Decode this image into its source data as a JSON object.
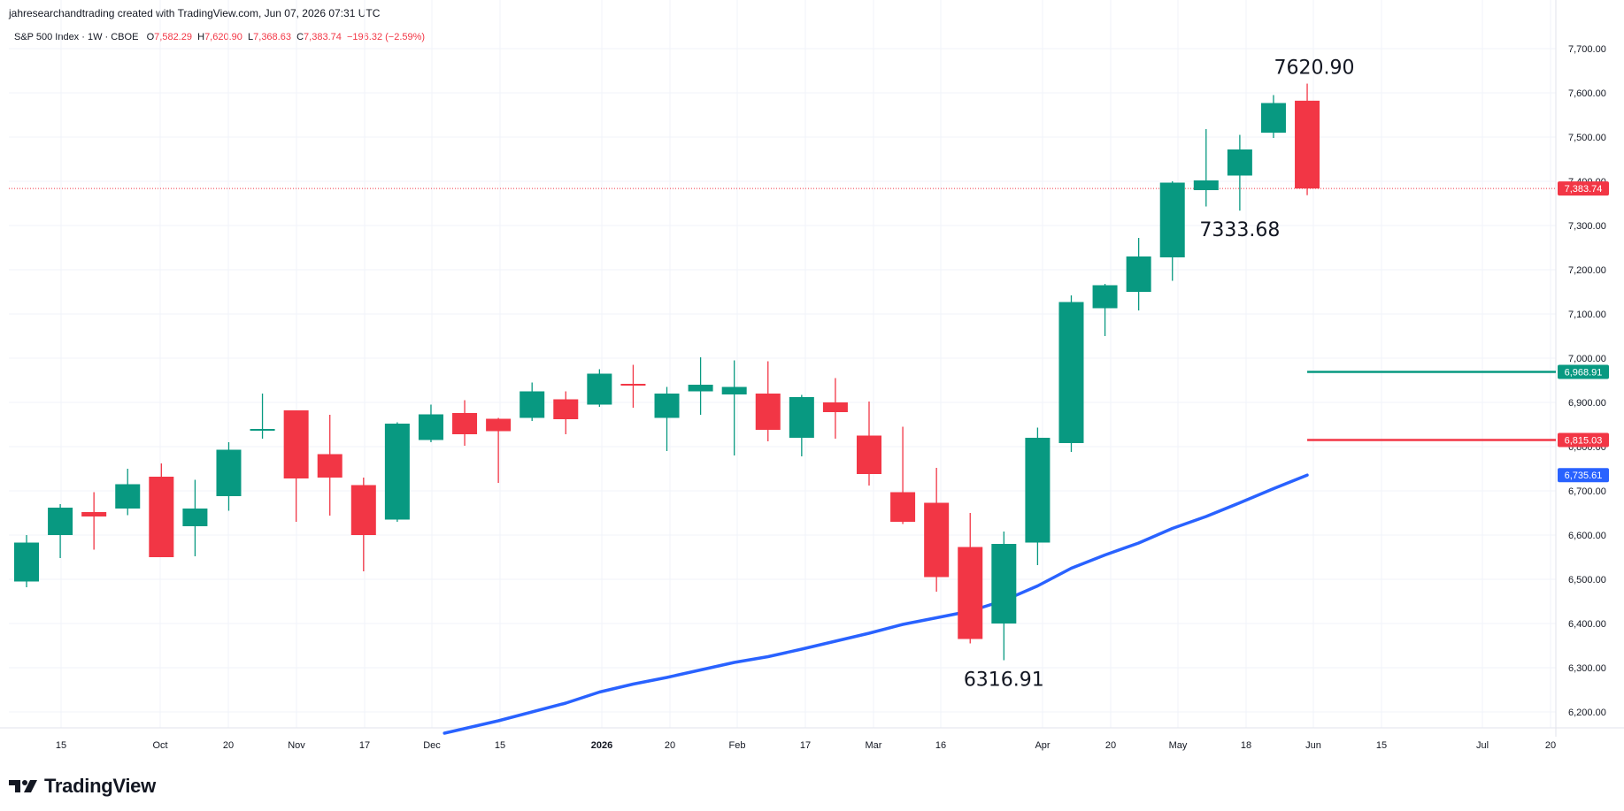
{
  "header": {
    "credit": "jahresearchandtrading created with TradingView.com, Jun 07, 2026 07:31 UTC"
  },
  "legend": {
    "symbol": "S&P 500 Index · 1W · CBOE",
    "o_label": "O",
    "o_value": "7,582.29",
    "h_label": "H",
    "h_value": "7,620.90",
    "l_label": "L",
    "l_value": "7,368.63",
    "c_label": "C",
    "c_value": "7,383.74",
    "change": "−196.32 (−2.59%)"
  },
  "footer": {
    "brand": "TradingView",
    "logo_icon": "tradingview-logo-icon"
  },
  "colors": {
    "up": "#089981",
    "down": "#f23645",
    "ma": "#2962ff",
    "grid": "#f0f3fa"
  },
  "chart_data": {
    "type": "candlestick",
    "ylim": [
      6150,
      7750
    ],
    "y_ticks": [
      "6,200.00",
      "6,300.00",
      "6,400.00",
      "6,500.00",
      "6,600.00",
      "6,700.00",
      "6,800.00",
      "6,900.00",
      "7,000.00",
      "7,100.00",
      "7,200.00",
      "7,300.00",
      "7,400.00",
      "7,500.00",
      "7,600.00",
      "7,700.00"
    ],
    "x_ticks": [
      "15",
      "Oct",
      "20",
      "Nov",
      "17",
      "Dec",
      "15",
      "2026",
      "20",
      "Feb",
      "17",
      "Mar",
      "16",
      "Apr",
      "20",
      "May",
      "18",
      "Jun",
      "15",
      "Jul",
      "20"
    ],
    "candles": [
      {
        "o": 6495,
        "h": 6600,
        "l": 6482,
        "c": 6583
      },
      {
        "o": 6600,
        "h": 6670,
        "l": 6548,
        "c": 6662
      },
      {
        "o": 6652,
        "h": 6697,
        "l": 6567,
        "c": 6642
      },
      {
        "o": 6660,
        "h": 6750,
        "l": 6645,
        "c": 6715
      },
      {
        "o": 6732,
        "h": 6762,
        "l": 6550,
        "c": 6550
      },
      {
        "o": 6620,
        "h": 6725,
        "l": 6552,
        "c": 6660
      },
      {
        "o": 6688,
        "h": 6810,
        "l": 6655,
        "c": 6793
      },
      {
        "o": 6840,
        "h": 6920,
        "l": 6818,
        "c": 6840
      },
      {
        "o": 6882,
        "h": 6882,
        "l": 6630,
        "c": 6728
      },
      {
        "o": 6783,
        "h": 6872,
        "l": 6644,
        "c": 6730
      },
      {
        "o": 6713,
        "h": 6730,
        "l": 6518,
        "c": 6600
      },
      {
        "o": 6635,
        "h": 6855,
        "l": 6630,
        "c": 6852
      },
      {
        "o": 6815,
        "h": 6895,
        "l": 6810,
        "c": 6873
      },
      {
        "o": 6876,
        "h": 6905,
        "l": 6802,
        "c": 6828
      },
      {
        "o": 6863,
        "h": 6865,
        "l": 6718,
        "c": 6835
      },
      {
        "o": 6865,
        "h": 6945,
        "l": 6858,
        "c": 6925
      },
      {
        "o": 6907,
        "h": 6925,
        "l": 6828,
        "c": 6862
      },
      {
        "o": 6895,
        "h": 6975,
        "l": 6890,
        "c": 6965
      },
      {
        "o": 6942,
        "h": 6985,
        "l": 6888,
        "c": 6940
      },
      {
        "o": 6865,
        "h": 6935,
        "l": 6790,
        "c": 6920
      },
      {
        "o": 6925,
        "h": 7002,
        "l": 6872,
        "c": 6940
      },
      {
        "o": 6918,
        "h": 6995,
        "l": 6780,
        "c": 6935
      },
      {
        "o": 6920,
        "h": 6993,
        "l": 6812,
        "c": 6838
      },
      {
        "o": 6820,
        "h": 6917,
        "l": 6778,
        "c": 6912
      },
      {
        "o": 6900,
        "h": 6955,
        "l": 6818,
        "c": 6878
      },
      {
        "o": 6825,
        "h": 6902,
        "l": 6712,
        "c": 6738
      },
      {
        "o": 6697,
        "h": 6845,
        "l": 6625,
        "c": 6630
      },
      {
        "o": 6673,
        "h": 6752,
        "l": 6472,
        "c": 6505
      },
      {
        "o": 6573,
        "h": 6650,
        "l": 6355,
        "c": 6365
      },
      {
        "o": 6400,
        "h": 6608,
        "l": 6316.91,
        "c": 6580
      },
      {
        "o": 6583,
        "h": 6843,
        "l": 6532,
        "c": 6820
      },
      {
        "o": 6808,
        "h": 7142,
        "l": 6788,
        "c": 7127
      },
      {
        "o": 7113,
        "h": 7168,
        "l": 7050,
        "c": 7165
      },
      {
        "o": 7150,
        "h": 7272,
        "l": 7108,
        "c": 7230
      },
      {
        "o": 7228,
        "h": 7400,
        "l": 7175,
        "c": 7397
      },
      {
        "o": 7380,
        "h": 7518,
        "l": 7343,
        "c": 7402
      },
      {
        "o": 7413,
        "h": 7505,
        "l": 7333.68,
        "c": 7472
      },
      {
        "o": 7510,
        "h": 7595,
        "l": 7498,
        "c": 7577
      },
      {
        "o": 7582.29,
        "h": 7620.9,
        "l": 7368.63,
        "c": 7383.74
      }
    ],
    "ma_series": [
      {
        "i": 12.4,
        "v": 6152
      },
      {
        "i": 14,
        "v": 6180
      },
      {
        "i": 16,
        "v": 6220
      },
      {
        "i": 17,
        "v": 6245
      },
      {
        "i": 18,
        "v": 6263
      },
      {
        "i": 19,
        "v": 6278
      },
      {
        "i": 20,
        "v": 6295
      },
      {
        "i": 21,
        "v": 6312
      },
      {
        "i": 22,
        "v": 6325
      },
      {
        "i": 23,
        "v": 6342
      },
      {
        "i": 24,
        "v": 6360
      },
      {
        "i": 25,
        "v": 6378
      },
      {
        "i": 26,
        "v": 6398
      },
      {
        "i": 27,
        "v": 6413
      },
      {
        "i": 28,
        "v": 6428
      },
      {
        "i": 29,
        "v": 6452
      },
      {
        "i": 30,
        "v": 6485
      },
      {
        "i": 31,
        "v": 6525
      },
      {
        "i": 32,
        "v": 6555
      },
      {
        "i": 33,
        "v": 6582
      },
      {
        "i": 34,
        "v": 6615
      },
      {
        "i": 35,
        "v": 6642
      },
      {
        "i": 36,
        "v": 6673
      },
      {
        "i": 37,
        "v": 6705
      },
      {
        "i": 38,
        "v": 6735.61
      }
    ],
    "last_price": 7383.74,
    "last_price_label": "7,383.74",
    "levels": [
      {
        "value": 6968.91,
        "label": "6,968.91",
        "color": "#089981"
      },
      {
        "value": 6815.03,
        "label": "6,815.03",
        "color": "#f23645"
      }
    ],
    "ma_label": "6,735.61",
    "annotations": [
      {
        "text": "7620.90",
        "at_candle": 38,
        "value": 7620.9,
        "place": "above"
      },
      {
        "text": "7333.68",
        "at_candle": 36,
        "value": 7333.68,
        "place": "below"
      },
      {
        "text": "6316.91",
        "at_candle": 29,
        "value": 6316.91,
        "place": "below"
      }
    ]
  }
}
